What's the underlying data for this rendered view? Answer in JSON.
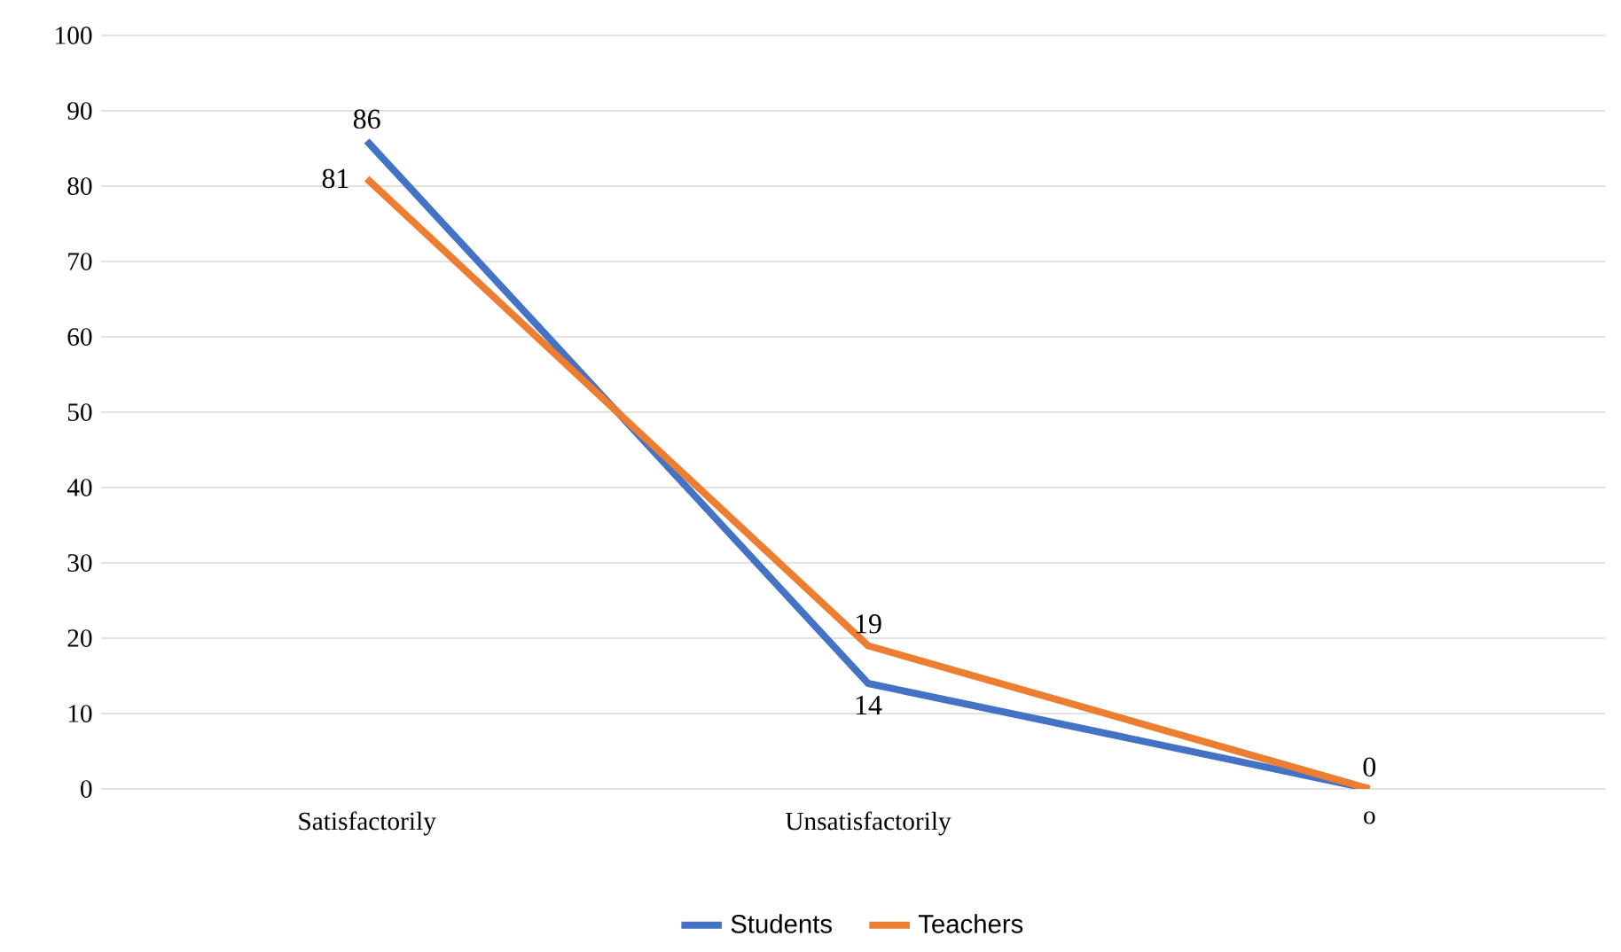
{
  "chart_data": {
    "type": "line",
    "categories": [
      "Satisfactorily",
      "Unsatisfactorily",
      "o"
    ],
    "series": [
      {
        "name": "Students",
        "color": "#4472c4",
        "values": [
          86,
          14,
          0
        ],
        "value_labels": [
          "86",
          "14",
          null
        ]
      },
      {
        "name": "Teachers",
        "color": "#ed7d31",
        "values": [
          81,
          19,
          0
        ],
        "value_labels": [
          "81",
          "19",
          "0"
        ]
      }
    ],
    "ylim": [
      0,
      100
    ],
    "yticks": [
      0,
      10,
      20,
      30,
      40,
      50,
      60,
      70,
      80,
      90,
      100
    ],
    "grid": "y",
    "legend": "bottom",
    "marker": "none",
    "line_style": "solid"
  }
}
